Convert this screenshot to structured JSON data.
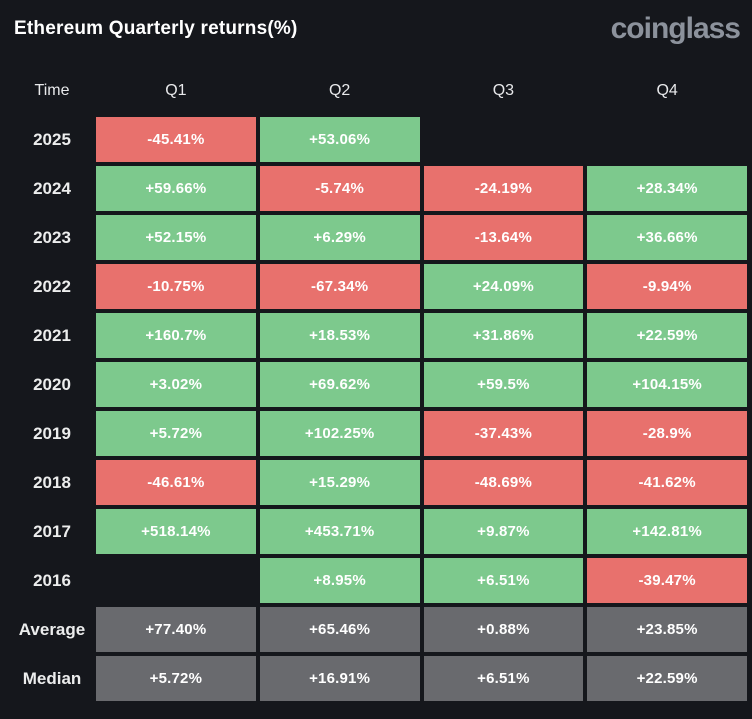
{
  "header": {
    "title": "Ethereum Quarterly returns(%)",
    "logo": "coinglass"
  },
  "colors": {
    "background": "#15171c",
    "positive": "#7dc98d",
    "negative": "#e8716d",
    "summary": "#696a6e",
    "cell_text": "#ffffff",
    "label_text": "#eceded",
    "logo_color": "#8c929c"
  },
  "chart_data": {
    "type": "heatmap",
    "title": "Ethereum Quarterly returns(%)",
    "legend_position": "none",
    "grid": false,
    "columns": [
      "Time",
      "Q1",
      "Q2",
      "Q3",
      "Q4"
    ],
    "rows": [
      {
        "label": "2025",
        "summary": false,
        "values": [
          "-45.41%",
          "+53.06%",
          null,
          null
        ]
      },
      {
        "label": "2024",
        "summary": false,
        "values": [
          "+59.66%",
          "-5.74%",
          "-24.19%",
          "+28.34%"
        ]
      },
      {
        "label": "2023",
        "summary": false,
        "values": [
          "+52.15%",
          "+6.29%",
          "-13.64%",
          "+36.66%"
        ]
      },
      {
        "label": "2022",
        "summary": false,
        "values": [
          "-10.75%",
          "-67.34%",
          "+24.09%",
          "-9.94%"
        ]
      },
      {
        "label": "2021",
        "summary": false,
        "values": [
          "+160.7%",
          "+18.53%",
          "+31.86%",
          "+22.59%"
        ]
      },
      {
        "label": "2020",
        "summary": false,
        "values": [
          "+3.02%",
          "+69.62%",
          "+59.5%",
          "+104.15%"
        ]
      },
      {
        "label": "2019",
        "summary": false,
        "values": [
          "+5.72%",
          "+102.25%",
          "-37.43%",
          "-28.9%"
        ]
      },
      {
        "label": "2018",
        "summary": false,
        "values": [
          "-46.61%",
          "+15.29%",
          "-48.69%",
          "-41.62%"
        ]
      },
      {
        "label": "2017",
        "summary": false,
        "values": [
          "+518.14%",
          "+453.71%",
          "+9.87%",
          "+142.81%"
        ]
      },
      {
        "label": "2016",
        "summary": false,
        "values": [
          null,
          "+8.95%",
          "+6.51%",
          "-39.47%"
        ]
      },
      {
        "label": "Average",
        "summary": true,
        "values": [
          "+77.40%",
          "+65.46%",
          "+0.88%",
          "+23.85%"
        ]
      },
      {
        "label": "Median",
        "summary": true,
        "values": [
          "+5.72%",
          "+16.91%",
          "+6.51%",
          "+22.59%"
        ]
      }
    ]
  }
}
